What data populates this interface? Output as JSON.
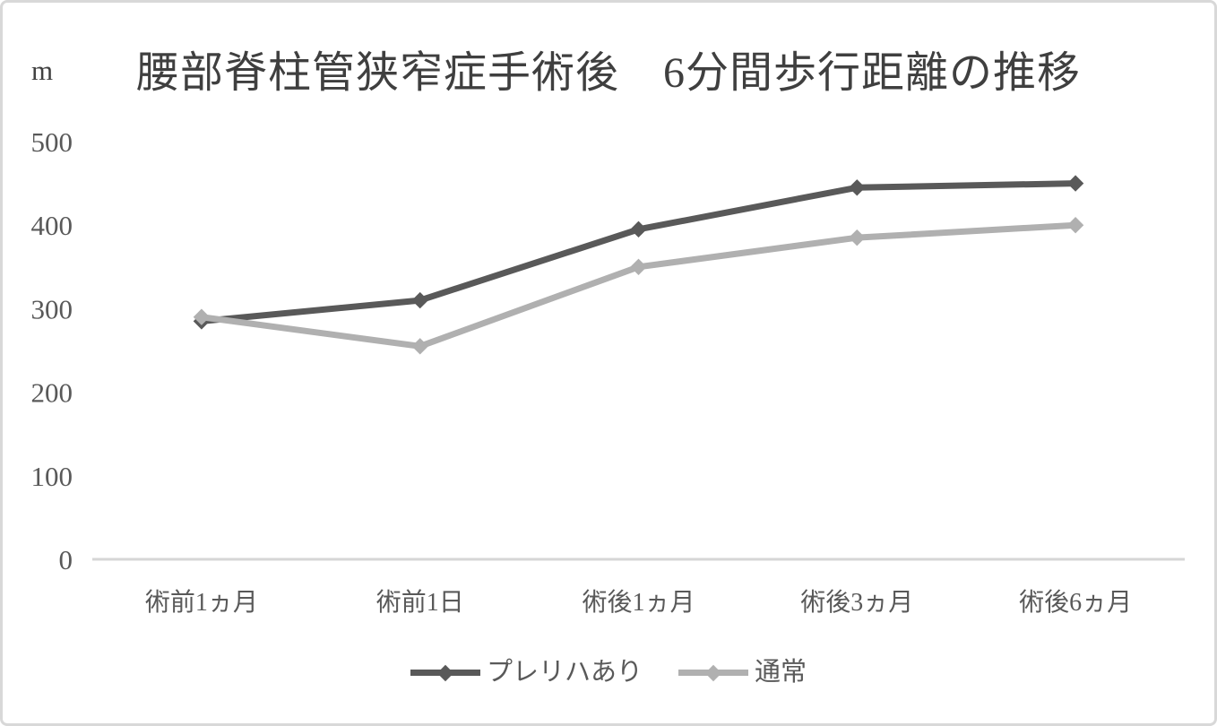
{
  "chart_data": {
    "type": "line",
    "title": "腰部脊柱管狭窄症手術後　6分間歩行距離の推移",
    "y_unit": "m",
    "xlabel": "",
    "ylabel": "m",
    "categories": [
      "術前1ヵ月",
      "術前1日",
      "術後1ヵ月",
      "術後3ヵ月",
      "術後6ヵ月"
    ],
    "series": [
      {
        "name": "プレリハあり",
        "values": [
          285,
          310,
          395,
          445,
          450
        ],
        "color": "#595959",
        "marker": "diamond"
      },
      {
        "name": "通常",
        "values": [
          290,
          255,
          350,
          385,
          400
        ],
        "color": "#b0b0b0",
        "marker": "diamond"
      }
    ],
    "ylim": [
      0,
      500
    ],
    "y_ticks": [
      0,
      100,
      200,
      300,
      400,
      500
    ],
    "grid": false,
    "legend_position": "bottom",
    "colors": {
      "axis_line": "#d6d6d6",
      "tick_text": "#595959",
      "title_text": "#3f3f3f"
    }
  }
}
